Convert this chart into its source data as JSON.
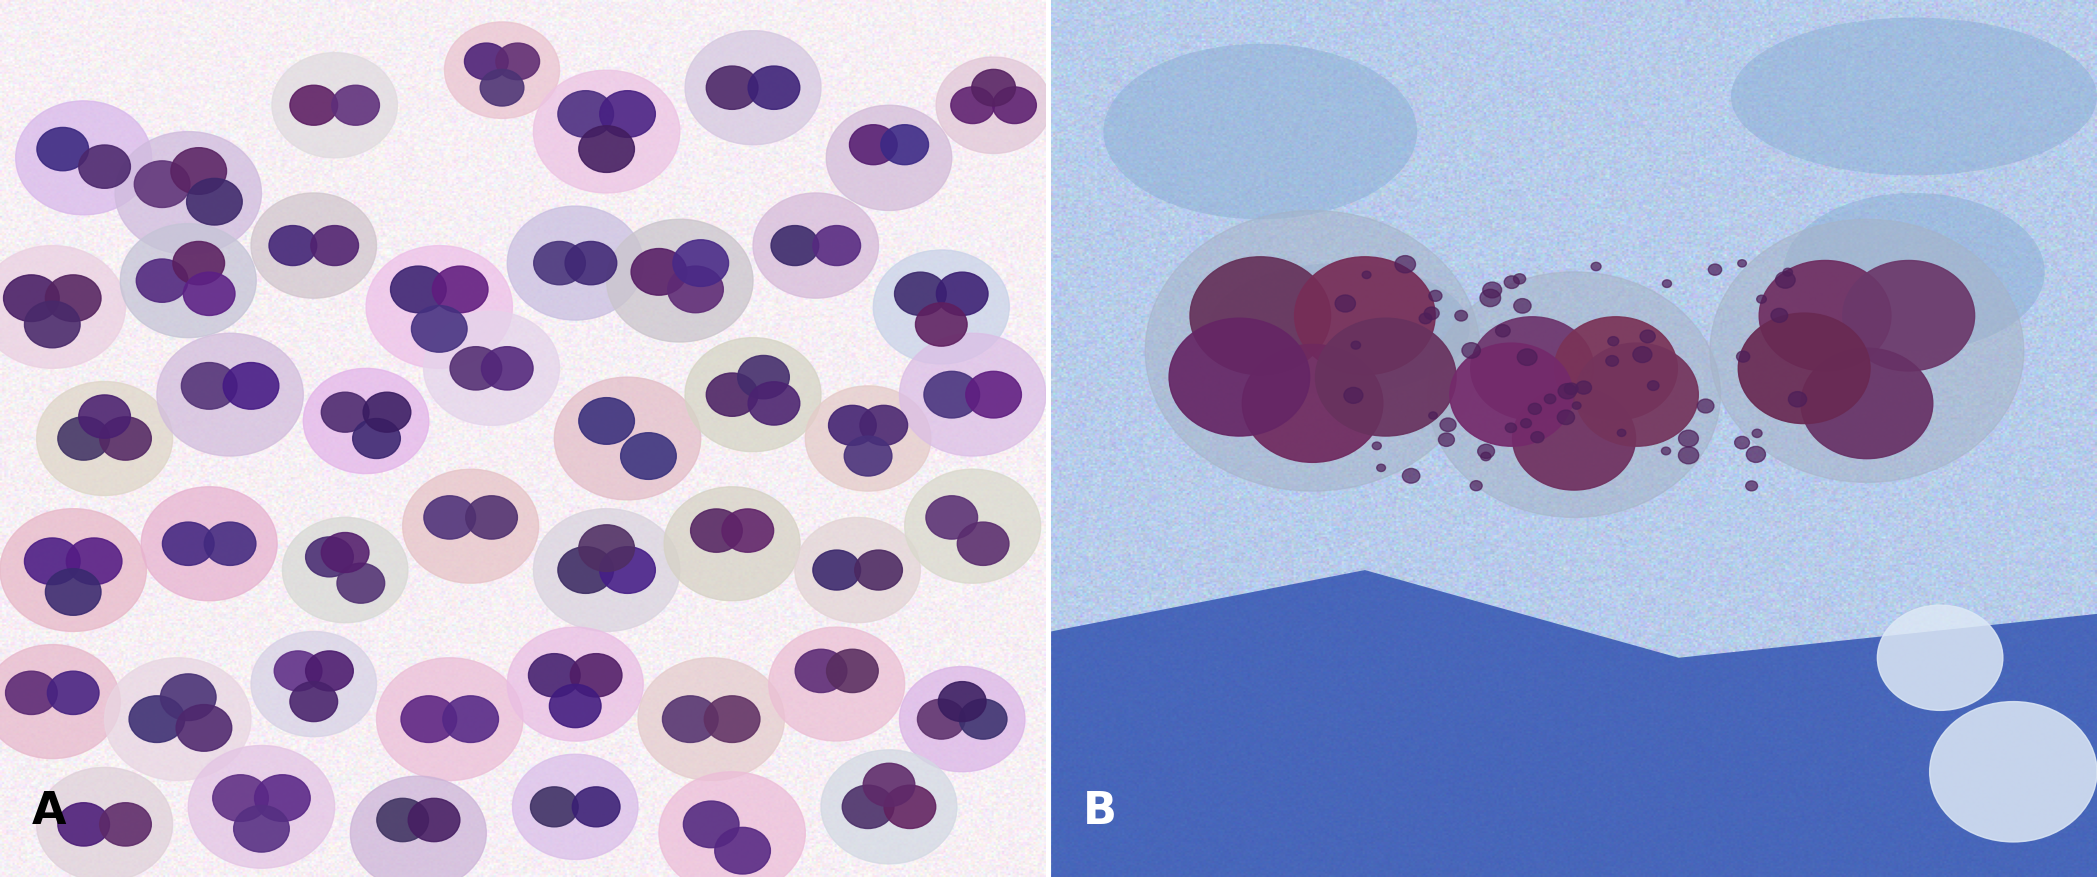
{
  "figsize": [
    20.97,
    8.77
  ],
  "dpi": 100,
  "label_A": "A",
  "label_B": "B",
  "label_fontsize": 32,
  "label_color_A": "#000000",
  "label_color_B": "#ffffff",
  "bg_color_A": "#f5eef0",
  "bg_color_B": "#a8c4e0",
  "border_color": "#000000",
  "border_width": 2
}
